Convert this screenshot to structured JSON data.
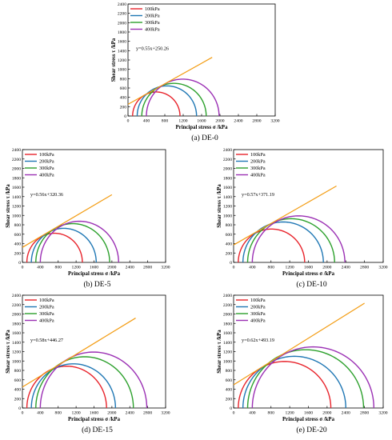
{
  "figure": {
    "panels_count": 5
  },
  "colors": {
    "series": [
      "#e8232b",
      "#1f77b4",
      "#2ca02c",
      "#9b30b4"
    ],
    "fit_line": "#f39c12",
    "axis": "#000000",
    "text": "#000000"
  },
  "chart_data": [
    {
      "type": "line",
      "subplot": "Mohr circles",
      "caption": "(a) DE-0",
      "xlabel": "Principal stress σ /kPa",
      "ylabel": "Shear stress τ /kPa",
      "xlim": [
        0,
        3200
      ],
      "ylim": [
        0,
        2400
      ],
      "xticks": [
        0,
        400,
        800,
        1200,
        1600,
        2000,
        2400,
        2800,
        3200
      ],
      "yticks": [
        0,
        200,
        400,
        600,
        800,
        1000,
        1200,
        1400,
        1600,
        1800,
        2000,
        2200,
        2400
      ],
      "legend": [
        "100kPa",
        "200kPa",
        "300kPa",
        "400kPa"
      ],
      "legend_position": "top-left",
      "series": [
        {
          "name": "100kPa",
          "sigma3": 100,
          "sigma1": 1130
        },
        {
          "name": "200kPa",
          "sigma3": 200,
          "sigma1": 1490
        },
        {
          "name": "300kPa",
          "sigma3": 300,
          "sigma1": 1700
        },
        {
          "name": "400kPa",
          "sigma3": 400,
          "sigma1": 1980
        }
      ],
      "fit": {
        "label": "y=0.55x+250.26",
        "slope": 0.55,
        "intercept": 250.26,
        "x_end": 1830
      }
    },
    {
      "type": "line",
      "subplot": "Mohr circles",
      "caption": "(b) DE-5",
      "xlabel": "Principal stress σ /kPa",
      "ylabel": "Shear stress τ /kPa",
      "xlim": [
        0,
        3200
      ],
      "ylim": [
        0,
        2400
      ],
      "xticks": [
        0,
        400,
        800,
        1200,
        1600,
        2000,
        2400,
        2800,
        3200
      ],
      "yticks": [
        0,
        200,
        400,
        600,
        800,
        1000,
        1200,
        1400,
        1600,
        1800,
        2000,
        2200,
        2400
      ],
      "legend": [
        "100kPa",
        "200kPa",
        "300kPa",
        "400kPa"
      ],
      "legend_position": "top-left",
      "series": [
        {
          "name": "100kPa",
          "sigma3": 100,
          "sigma1": 1340
        },
        {
          "name": "200kPa",
          "sigma3": 200,
          "sigma1": 1650
        },
        {
          "name": "300kPa",
          "sigma3": 300,
          "sigma1": 1950
        },
        {
          "name": "400kPa",
          "sigma3": 400,
          "sigma1": 2150
        }
      ],
      "fit": {
        "label": "y=0.56x+320.36",
        "slope": 0.56,
        "intercept": 320.36,
        "x_end": 2000
      }
    },
    {
      "type": "line",
      "subplot": "Mohr circles",
      "caption": "(c) DE-10",
      "xlabel": "Principal stress σ /kPa",
      "ylabel": "Shear stress τ /kPa",
      "xlim": [
        0,
        3200
      ],
      "ylim": [
        0,
        2400
      ],
      "xticks": [
        0,
        400,
        800,
        1200,
        1600,
        2000,
        2400,
        2800,
        3200
      ],
      "yticks": [
        0,
        200,
        400,
        600,
        800,
        1000,
        1200,
        1400,
        1600,
        1800,
        2000,
        2200,
        2400
      ],
      "legend": [
        "100kPa",
        "200kPa",
        "300kPa",
        "400kPa"
      ],
      "legend_position": "top-left",
      "series": [
        {
          "name": "100kPa",
          "sigma3": 100,
          "sigma1": 1520
        },
        {
          "name": "200kPa",
          "sigma3": 200,
          "sigma1": 1920
        },
        {
          "name": "300kPa",
          "sigma3": 300,
          "sigma1": 2160
        },
        {
          "name": "400kPa",
          "sigma3": 400,
          "sigma1": 2380
        }
      ],
      "fit": {
        "label": "y=0.57x+371.19",
        "slope": 0.57,
        "intercept": 371.19,
        "x_end": 2200
      }
    },
    {
      "type": "line",
      "subplot": "Mohr circles",
      "caption": "(d) DE-15",
      "xlabel": "Principal stress σ /kPa",
      "ylabel": "Shear stress τ /kPa",
      "xlim": [
        0,
        3200
      ],
      "ylim": [
        0,
        2400
      ],
      "xticks": [
        0,
        400,
        800,
        1200,
        1600,
        2000,
        2400,
        2800,
        3200
      ],
      "yticks": [
        0,
        200,
        400,
        600,
        800,
        1000,
        1200,
        1400,
        1600,
        1800,
        2000,
        2200,
        2400
      ],
      "legend": [
        "100kPa",
        "200kPa",
        "300kPa",
        "400kPa"
      ],
      "legend_position": "top-left",
      "series": [
        {
          "name": "100kPa",
          "sigma3": 100,
          "sigma1": 1880
        },
        {
          "name": "200kPa",
          "sigma3": 200,
          "sigma1": 2080
        },
        {
          "name": "300kPa",
          "sigma3": 300,
          "sigma1": 2480
        },
        {
          "name": "400kPa",
          "sigma3": 400,
          "sigma1": 2780
        }
      ],
      "fit": {
        "label": "y=0.58x+446.27",
        "slope": 0.58,
        "intercept": 446.27,
        "x_end": 2530
      }
    },
    {
      "type": "line",
      "subplot": "Mohr circles",
      "caption": "(e) DE-20",
      "xlabel": "Principal stress σ /kPa",
      "ylabel": "Shear stress τ /kPa",
      "xlim": [
        0,
        3200
      ],
      "ylim": [
        0,
        2400
      ],
      "xticks": [
        0,
        400,
        800,
        1200,
        1600,
        2000,
        2400,
        2800,
        3200
      ],
      "yticks": [
        0,
        200,
        400,
        600,
        800,
        1000,
        1200,
        1400,
        1600,
        1800,
        2000,
        2200,
        2400
      ],
      "legend": [
        "100kPa",
        "200kPa",
        "300kPa",
        "400kPa"
      ],
      "legend_position": "top-left",
      "series": [
        {
          "name": "100kPa",
          "sigma3": 100,
          "sigma1": 2080
        },
        {
          "name": "200kPa",
          "sigma3": 200,
          "sigma1": 2400
        },
        {
          "name": "300kPa",
          "sigma3": 300,
          "sigma1": 2780
        },
        {
          "name": "400kPa",
          "sigma3": 400,
          "sigma1": 3000
        }
      ],
      "fit": {
        "label": "y=0.62x+493.19",
        "slope": 0.62,
        "intercept": 493.19,
        "x_end": 2800
      }
    }
  ]
}
